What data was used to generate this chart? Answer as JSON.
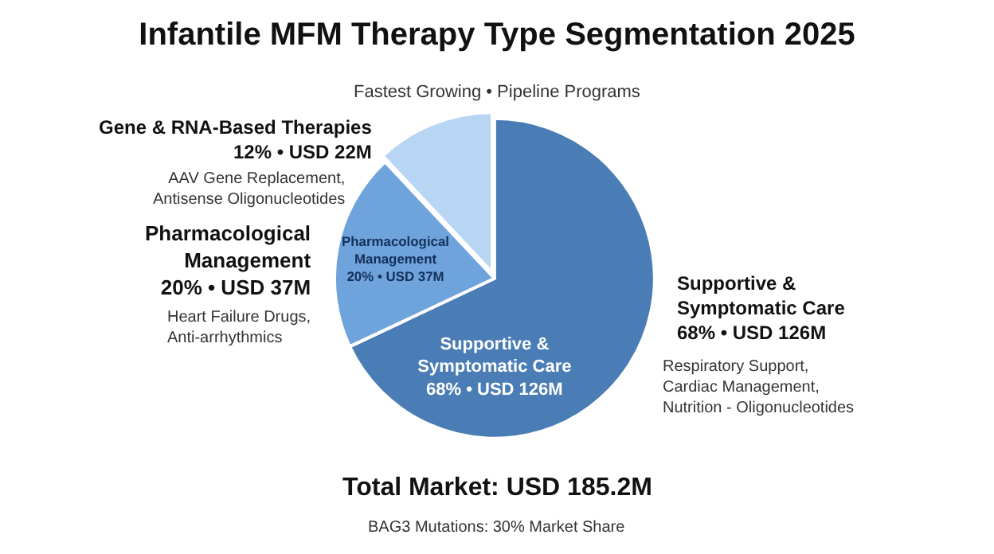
{
  "chart_data": {
    "type": "pie",
    "title": "Infantile MFM Therapy Type Segmentation 2025",
    "categories": [
      "Supportive & Symptomatic Care",
      "Pharmacological Management",
      "Gene & RNA-Based Therapies"
    ],
    "values": [
      68,
      20,
      12
    ],
    "value_labels": [
      "68% • USD 126M",
      "20% • USD 37M",
      "12% • USD 22M"
    ],
    "colors": [
      "#4a7db5",
      "#6ea3dc",
      "#b8d6f3"
    ],
    "legend": false,
    "annotations": [
      "Fastest Growing • Pipeline Programs",
      "AAV Gene Replacement,\nAntisense Oligonucleotides",
      "Heart Failure Drugs,\nAnti-arrhythmics",
      "Respiratory Support,\nCardiac Management,\nNutrition - Oligonucleotides",
      "Total Market: USD 185.2M",
      "BAG3 Mutations: 30% Market Share"
    ]
  }
}
